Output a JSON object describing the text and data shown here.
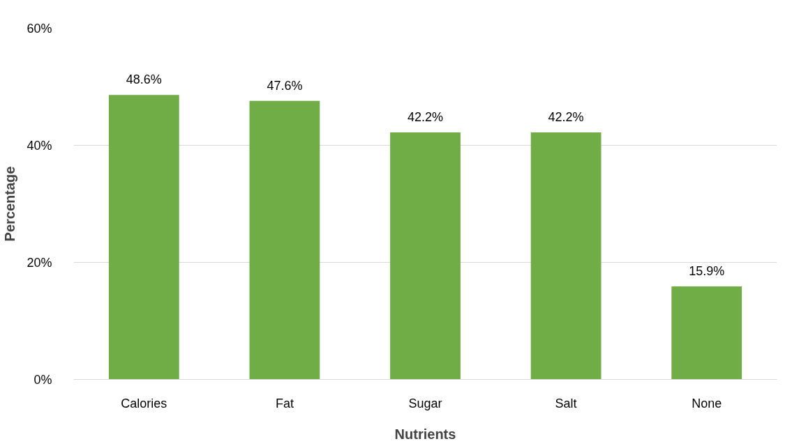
{
  "chart_data": {
    "type": "bar",
    "xlabel": "Nutrients",
    "ylabel": "Percentage",
    "categories": [
      "Calories",
      "Fat",
      "Sugar",
      "Salt",
      "None"
    ],
    "values": [
      48.6,
      47.6,
      42.2,
      42.2,
      15.9
    ],
    "value_labels": [
      "48.6%",
      "47.6%",
      "42.2%",
      "42.2%",
      "15.9%"
    ],
    "color": "#70ad47",
    "ylim": [
      0,
      60
    ],
    "yticks": [
      {
        "value": 0,
        "label": "0%"
      },
      {
        "value": 20,
        "label": "20%"
      },
      {
        "value": 40,
        "label": "40%"
      },
      {
        "value": 60,
        "label": "60%"
      }
    ],
    "grid": "y"
  }
}
